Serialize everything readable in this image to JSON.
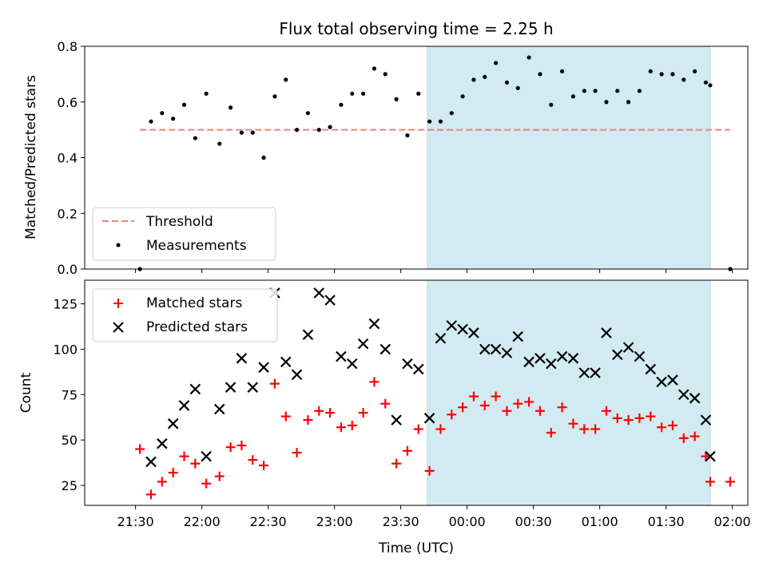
{
  "chart_data": [
    {
      "type": "scatter",
      "title": "Flux total observing time = 2.25 h",
      "xlabel": "",
      "ylabel": "Matched/Predicted stars",
      "ylim": [
        0,
        0.8
      ],
      "yticks": [
        "0.0",
        "0.2",
        "0.4",
        "0.6",
        "0.8"
      ],
      "legend_position": "lower-left",
      "highlight_span": {
        "x": [
          "23:42",
          "01:50"
        ],
        "color": "#add8e6"
      },
      "threshold": {
        "name": "Threshold",
        "value": 0.5,
        "x": [
          "21:32",
          "01:59"
        ],
        "color": "#f08080"
      },
      "series": [
        {
          "name": "Measurements",
          "color": "#000000",
          "x": [
            "21:32",
            "21:37",
            "21:42",
            "21:47",
            "21:52",
            "21:57",
            "22:02",
            "22:08",
            "22:13",
            "22:18",
            "22:23",
            "22:28",
            "22:33",
            "22:38",
            "22:43",
            "22:48",
            "22:53",
            "22:58",
            "23:03",
            "23:08",
            "23:13",
            "23:18",
            "23:23",
            "23:28",
            "23:33",
            "23:38",
            "23:43",
            "23:48",
            "23:53",
            "23:58",
            "00:03",
            "00:08",
            "00:13",
            "00:18",
            "00:23",
            "00:28",
            "00:33",
            "00:38",
            "00:43",
            "00:48",
            "00:53",
            "00:58",
            "01:03",
            "01:08",
            "01:13",
            "01:18",
            "01:23",
            "01:28",
            "01:33",
            "01:38",
            "01:43",
            "01:48",
            "01:50",
            "01:59"
          ],
          "y": [
            0.0,
            0.53,
            0.56,
            0.54,
            0.59,
            0.47,
            0.63,
            0.45,
            0.58,
            0.49,
            0.49,
            0.4,
            0.62,
            0.68,
            0.5,
            0.56,
            0.5,
            0.51,
            0.59,
            0.63,
            0.63,
            0.72,
            0.7,
            0.61,
            0.48,
            0.63,
            0.53,
            0.53,
            0.56,
            0.62,
            0.68,
            0.69,
            0.74,
            0.67,
            0.65,
            0.76,
            0.7,
            0.59,
            0.71,
            0.62,
            0.64,
            0.64,
            0.6,
            0.64,
            0.6,
            0.64,
            0.71,
            0.7,
            0.7,
            0.68,
            0.71,
            0.67,
            0.66,
            0.0
          ]
        }
      ]
    },
    {
      "type": "scatter",
      "xlabel": "Time (UTC)",
      "ylabel": "Count",
      "ylim": [
        14,
        138
      ],
      "yticks": [
        "25",
        "50",
        "75",
        "100",
        "125"
      ],
      "xticks": [
        "21:30",
        "22:00",
        "22:30",
        "23:00",
        "23:30",
        "00:00",
        "00:30",
        "01:00",
        "01:30",
        "02:00"
      ],
      "legend_position": "upper-left",
      "highlight_span": {
        "x": [
          "23:42",
          "01:50"
        ],
        "color": "#add8e6"
      },
      "series": [
        {
          "name": "Matched stars",
          "color": "#ff0000",
          "marker": "+",
          "x": [
            "21:32",
            "21:37",
            "21:42",
            "21:47",
            "21:52",
            "21:57",
            "22:02",
            "22:08",
            "22:13",
            "22:18",
            "22:23",
            "22:28",
            "22:33",
            "22:38",
            "22:43",
            "22:48",
            "22:53",
            "22:58",
            "23:03",
            "23:08",
            "23:13",
            "23:18",
            "23:23",
            "23:28",
            "23:33",
            "23:38",
            "23:43",
            "23:48",
            "23:53",
            "23:58",
            "00:03",
            "00:08",
            "00:13",
            "00:18",
            "00:23",
            "00:28",
            "00:33",
            "00:38",
            "00:43",
            "00:48",
            "00:53",
            "00:58",
            "01:03",
            "01:08",
            "01:13",
            "01:18",
            "01:23",
            "01:28",
            "01:33",
            "01:38",
            "01:43",
            "01:48",
            "01:50",
            "01:59"
          ],
          "y": [
            45,
            20,
            27,
            32,
            41,
            37,
            26,
            30,
            46,
            47,
            39,
            36,
            81,
            63,
            43,
            61,
            66,
            65,
            57,
            58,
            65,
            82,
            70,
            37,
            44,
            56,
            33,
            56,
            64,
            68,
            74,
            69,
            74,
            66,
            70,
            71,
            66,
            54,
            68,
            59,
            56,
            56,
            66,
            62,
            61,
            62,
            63,
            57,
            58,
            51,
            52,
            41,
            27,
            27
          ]
        },
        {
          "name": "Predicted stars",
          "color": "#000000",
          "marker": "x",
          "x": [
            "21:37",
            "21:42",
            "21:47",
            "21:52",
            "21:57",
            "22:02",
            "22:08",
            "22:13",
            "22:18",
            "22:23",
            "22:28",
            "22:33",
            "22:38",
            "22:43",
            "22:48",
            "22:53",
            "22:58",
            "23:03",
            "23:08",
            "23:13",
            "23:18",
            "23:23",
            "23:28",
            "23:33",
            "23:38",
            "23:43",
            "23:48",
            "23:53",
            "23:58",
            "00:03",
            "00:08",
            "00:13",
            "00:18",
            "00:23",
            "00:28",
            "00:33",
            "00:38",
            "00:43",
            "00:48",
            "00:53",
            "00:58",
            "01:03",
            "01:08",
            "01:13",
            "01:18",
            "01:23",
            "01:28",
            "01:33",
            "01:38",
            "01:43",
            "01:48",
            "01:50"
          ],
          "y": [
            38,
            48,
            59,
            69,
            78,
            41,
            67,
            79,
            95,
            79,
            90,
            131,
            93,
            86,
            108,
            131,
            127,
            96,
            92,
            103,
            114,
            100,
            61,
            92,
            89,
            62,
            106,
            113,
            111,
            109,
            100,
            100,
            98,
            107,
            93,
            95,
            92,
            96,
            95,
            87,
            87,
            109,
            97,
            101,
            96,
            89,
            82,
            83,
            75,
            73,
            61,
            41
          ]
        }
      ]
    }
  ]
}
